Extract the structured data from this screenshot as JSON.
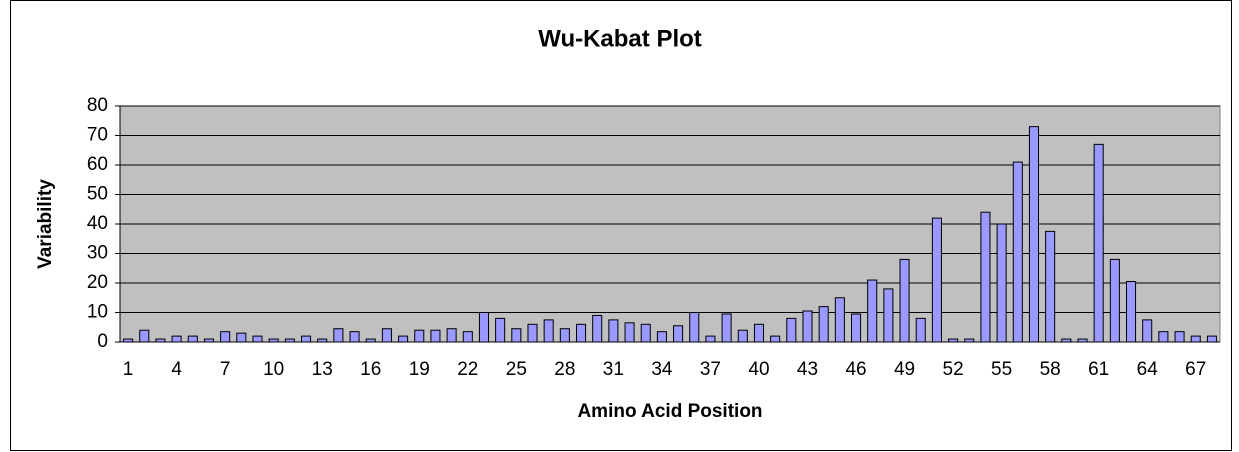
{
  "chart_data": {
    "type": "bar",
    "title": "Wu-Kabat Plot",
    "x_label": "Amino Acid Position",
    "y_label": "Variability",
    "categories": [
      1,
      null,
      null,
      4,
      null,
      null,
      7,
      null,
      null,
      10,
      null,
      null,
      13,
      null,
      null,
      16,
      null,
      null,
      19,
      null,
      null,
      22,
      null,
      null,
      25,
      null,
      null,
      28,
      null,
      null,
      31,
      null,
      null,
      34,
      null,
      null,
      37,
      null,
      null,
      40,
      null,
      null,
      43,
      null,
      null,
      46,
      null,
      null,
      49,
      null,
      null,
      52,
      null,
      null,
      55,
      null,
      null,
      58,
      null,
      null,
      61,
      null,
      null,
      64,
      null,
      null,
      67,
      null
    ],
    "values": [
      1,
      4,
      1,
      2,
      2,
      1,
      3.5,
      3,
      2,
      1,
      1,
      2,
      1,
      4.5,
      3.5,
      1,
      4.5,
      2,
      4,
      4,
      4.5,
      3.5,
      10,
      8,
      4.5,
      6,
      7.5,
      4.5,
      6,
      9,
      7.5,
      6.5,
      6,
      3.5,
      5.5,
      10,
      2,
      9.5,
      4,
      6,
      2,
      8,
      10.5,
      12,
      15,
      9.5,
      21,
      18,
      28,
      8,
      42,
      1,
      1,
      44,
      40,
      61,
      73,
      37.5,
      1,
      1,
      67,
      28,
      20.5,
      7.5,
      3.5,
      3.5,
      2,
      2
    ],
    "color": "#9999ff",
    "ylim": [
      0,
      80
    ],
    "yticks": [
      0,
      10,
      20,
      30,
      40,
      50,
      60,
      70,
      80
    ],
    "grid": true
  }
}
